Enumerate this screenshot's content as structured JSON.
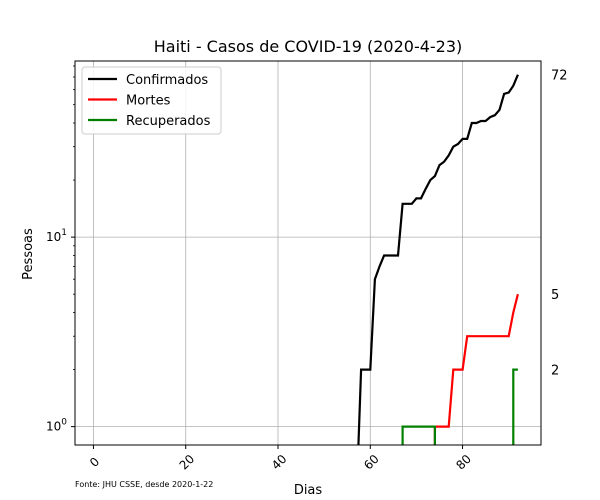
{
  "chart_data": {
    "type": "line",
    "title": "Haiti - Casos de COVID-19 (2020-4-23)",
    "xlabel": "Dias",
    "ylabel": "Pessoas",
    "source_note": "Fonte: JHU CSSE, desde 2020-1-22",
    "xlim": [
      -4,
      97
    ],
    "ylim": [
      0.8,
      85
    ],
    "yscale": "log",
    "grid": true,
    "legend_position": "top-left",
    "x_ticks": [
      0,
      20,
      40,
      60,
      80
    ],
    "x_tick_labels": [
      "0",
      "20",
      "40",
      "60",
      "80"
    ],
    "y_ticks": [
      1,
      10
    ],
    "y_tick_labels": [
      "10^0",
      "10^1"
    ],
    "end_labels": [
      {
        "text": "72",
        "value": 72
      },
      {
        "text": "5",
        "value": 5
      },
      {
        "text": "2",
        "value": 2
      }
    ],
    "series": [
      {
        "name": "Confirmados",
        "color": "#000000",
        "points": [
          [
            57,
            0
          ],
          [
            58,
            2
          ],
          [
            60,
            2
          ],
          [
            61,
            6
          ],
          [
            62,
            7
          ],
          [
            63,
            8
          ],
          [
            64,
            8
          ],
          [
            65,
            8
          ],
          [
            66,
            8
          ],
          [
            67,
            15
          ],
          [
            68,
            15
          ],
          [
            69,
            15
          ],
          [
            70,
            16
          ],
          [
            71,
            16
          ],
          [
            72,
            18
          ],
          [
            73,
            20
          ],
          [
            74,
            21
          ],
          [
            75,
            24
          ],
          [
            76,
            25
          ],
          [
            77,
            27
          ],
          [
            78,
            30
          ],
          [
            79,
            31
          ],
          [
            80,
            33
          ],
          [
            81,
            33
          ],
          [
            82,
            40
          ],
          [
            83,
            40
          ],
          [
            84,
            41
          ],
          [
            85,
            41
          ],
          [
            86,
            43
          ],
          [
            87,
            44
          ],
          [
            88,
            47
          ],
          [
            89,
            57
          ],
          [
            90,
            58
          ],
          [
            91,
            63
          ],
          [
            92,
            72
          ]
        ]
      },
      {
        "name": "Mortes",
        "color": "#ff0000",
        "points": [
          [
            74,
            0
          ],
          [
            74,
            1
          ],
          [
            77,
            1
          ],
          [
            78,
            2
          ],
          [
            80,
            2
          ],
          [
            81,
            3
          ],
          [
            90,
            3
          ],
          [
            91,
            4
          ],
          [
            92,
            5
          ]
        ]
      },
      {
        "name": "Recuperados",
        "color": "#008000",
        "points": [
          [
            67,
            0
          ],
          [
            67,
            1
          ],
          [
            74,
            1
          ],
          [
            74,
            0
          ],
          [
            91,
            0
          ],
          [
            91,
            2
          ],
          [
            92,
            2
          ]
        ]
      }
    ]
  }
}
